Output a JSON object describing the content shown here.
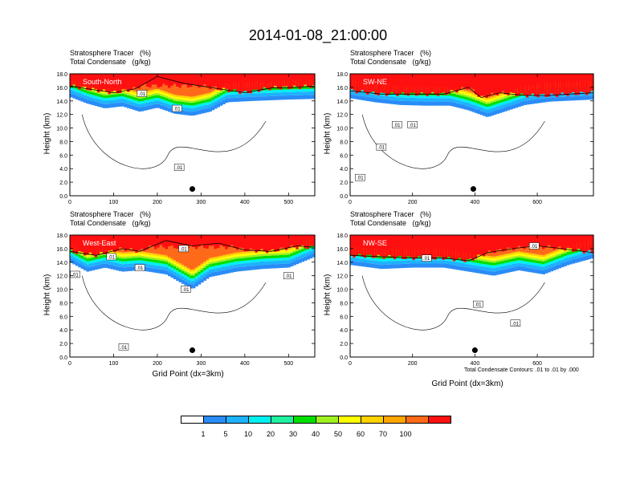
{
  "title": "2014-01-08_21:00:00",
  "colorbar": {
    "colors": [
      "#ffffff",
      "#2a8cf7",
      "#1fb2ff",
      "#00f0f0",
      "#20f0a0",
      "#00e000",
      "#a0f020",
      "#ffff00",
      "#ffd200",
      "#ffa500",
      "#ff6a1a",
      "#ff1010"
    ],
    "labels": [
      "1",
      "5",
      "10",
      "20",
      "30",
      "40",
      "50",
      "60",
      "70",
      "100"
    ]
  },
  "contour_note": "Total Condensate Contours: .01 to .01 by .000",
  "chart_data": [
    {
      "type": "heatmap",
      "title": "South-North",
      "header_line1": "Stratosphere Tracer   (%)",
      "header_line2": "Total Condensate   (g/kg)",
      "ylabel": "Height (km)",
      "xlabel": "",
      "xlim": [
        0,
        560
      ],
      "ylim": [
        0,
        18
      ],
      "xticks": [
        "0",
        "100",
        "200",
        "300",
        "400",
        "500"
      ],
      "xtick_values": [
        0,
        100,
        200,
        300,
        400,
        500
      ],
      "yticks": [
        "0.0",
        "2.0",
        "4.0",
        "6.0",
        "8.0",
        "10.0",
        "12.0",
        "14.0",
        "16.0",
        "18.0"
      ],
      "tropopause_km": [
        [
          0,
          16.2
        ],
        [
          40,
          15.8
        ],
        [
          100,
          15.2
        ],
        [
          150,
          15.8
        ],
        [
          200,
          17.6
        ],
        [
          260,
          16.6
        ],
        [
          320,
          16.0
        ],
        [
          400,
          15.2
        ],
        [
          460,
          15.9
        ],
        [
          520,
          16.0
        ],
        [
          560,
          16.2
        ]
      ],
      "tracer_base_km": [
        [
          0,
          14.6
        ],
        [
          40,
          13.6
        ],
        [
          80,
          12.9
        ],
        [
          120,
          13.2
        ],
        [
          160,
          12.4
        ],
        [
          200,
          13.0
        ],
        [
          240,
          12.1
        ],
        [
          280,
          11.8
        ],
        [
          320,
          12.4
        ],
        [
          360,
          13.8
        ],
        [
          420,
          14.0
        ],
        [
          500,
          14.2
        ],
        [
          560,
          14.3
        ]
      ],
      "contour_labels": [
        {
          "x": 165,
          "y": 15.1,
          "t": ".01"
        },
        {
          "x": 245,
          "y": 12.9,
          "t": ".01"
        },
        {
          "x": 250,
          "y": 4.2,
          "t": ".01"
        }
      ],
      "dot": [
        280,
        1.0
      ]
    },
    {
      "type": "heatmap",
      "title": "SW-NE",
      "header_line1": "Stratosphere Tracer   (%)",
      "header_line2": "Total Condensate   (g/kg)",
      "ylabel": "Height (km)",
      "xlabel": "",
      "xlim": [
        0,
        780
      ],
      "ylim": [
        0,
        18
      ],
      "xticks": [
        "0",
        "200",
        "400",
        "600"
      ],
      "xtick_values": [
        0,
        200,
        400,
        600
      ],
      "yticks": [
        "0.0",
        "2.0",
        "4.0",
        "6.0",
        "8.0",
        "10.0",
        "12.0",
        "14.0",
        "16.0",
        "18.0"
      ],
      "tropopause_km": [
        [
          0,
          15.5
        ],
        [
          100,
          15.0
        ],
        [
          200,
          15.0
        ],
        [
          300,
          15.0
        ],
        [
          380,
          16.0
        ],
        [
          420,
          14.5
        ],
        [
          480,
          15.2
        ],
        [
          560,
          14.8
        ],
        [
          640,
          14.8
        ],
        [
          700,
          15.0
        ],
        [
          780,
          15.2
        ]
      ],
      "tracer_base_km": [
        [
          0,
          14.4
        ],
        [
          80,
          13.8
        ],
        [
          160,
          13.4
        ],
        [
          240,
          13.3
        ],
        [
          320,
          13.3
        ],
        [
          380,
          12.6
        ],
        [
          440,
          11.6
        ],
        [
          500,
          12.5
        ],
        [
          560,
          13.4
        ],
        [
          640,
          13.9
        ],
        [
          780,
          14.2
        ]
      ],
      "contour_labels": [
        {
          "x": 32,
          "y": 2.7,
          "t": ".01"
        },
        {
          "x": 100,
          "y": 7.2,
          "t": ".01"
        },
        {
          "x": 150,
          "y": 10.5,
          "t": ".01"
        },
        {
          "x": 200,
          "y": 10.5,
          "t": ".01"
        }
      ],
      "dot": [
        395,
        1.0
      ]
    },
    {
      "type": "heatmap",
      "title": "West-East",
      "header_line1": "Stratosphere Tracer   (%)",
      "header_line2": "Total Condensate   (g/kg)",
      "ylabel": "Height (km)",
      "xlabel": "Grid Point (dx=3km)",
      "xlim": [
        0,
        560
      ],
      "ylim": [
        0,
        18
      ],
      "xticks": [
        "0",
        "100",
        "200",
        "300",
        "400",
        "500"
      ],
      "xtick_values": [
        0,
        100,
        200,
        300,
        400,
        500
      ],
      "yticks": [
        "0.0",
        "2.0",
        "4.0",
        "6.0",
        "8.0",
        "10.0",
        "12.0",
        "14.0",
        "16.0",
        "18.0"
      ],
      "tropopause_km": [
        [
          0,
          15.6
        ],
        [
          60,
          15.0
        ],
        [
          120,
          16.0
        ],
        [
          160,
          15.6
        ],
        [
          220,
          17.2
        ],
        [
          280,
          16.4
        ],
        [
          340,
          16.8
        ],
        [
          400,
          15.8
        ],
        [
          460,
          15.6
        ],
        [
          520,
          16.4
        ],
        [
          560,
          16.2
        ]
      ],
      "tracer_base_km": [
        [
          0,
          14.0
        ],
        [
          40,
          12.6
        ],
        [
          80,
          13.2
        ],
        [
          120,
          12.6
        ],
        [
          160,
          12.8
        ],
        [
          220,
          12.2
        ],
        [
          280,
          10.0
        ],
        [
          320,
          11.8
        ],
        [
          380,
          12.6
        ],
        [
          440,
          13.0
        ],
        [
          500,
          13.2
        ],
        [
          560,
          14.8
        ]
      ],
      "contour_labels": [
        {
          "x": 12,
          "y": 12.2,
          "t": ".01"
        },
        {
          "x": 95,
          "y": 14.8,
          "t": ".01"
        },
        {
          "x": 160,
          "y": 13.2,
          "t": ".01"
        },
        {
          "x": 265,
          "y": 10.0,
          "t": ".01"
        },
        {
          "x": 260,
          "y": 16.0,
          "t": ".01"
        },
        {
          "x": 500,
          "y": 12.0,
          "t": ".01"
        },
        {
          "x": 123,
          "y": 1.5,
          "t": ".01"
        }
      ],
      "dot": [
        280,
        1.0
      ]
    },
    {
      "type": "heatmap",
      "title": "NW-SE",
      "header_line1": "Stratosphere Tracer   (%)",
      "header_line2": "Total Condensate   (g/kg)",
      "ylabel": "",
      "xlabel": "Grid Point (dx=3km)",
      "xlim": [
        0,
        780
      ],
      "ylim": [
        0,
        18
      ],
      "xticks": [
        "0",
        "200",
        "400",
        "600"
      ],
      "xtick_values": [
        0,
        200,
        400,
        600
      ],
      "yticks": [
        "0.0",
        "2.0",
        "4.0",
        "6.0",
        "8.0",
        "10.0",
        "12.0",
        "14.0",
        "16.0",
        "18.0"
      ],
      "tropopause_km": [
        [
          0,
          15.0
        ],
        [
          100,
          14.8
        ],
        [
          200,
          14.6
        ],
        [
          300,
          14.6
        ],
        [
          380,
          14.2
        ],
        [
          440,
          15.4
        ],
        [
          520,
          16.0
        ],
        [
          600,
          16.4
        ],
        [
          680,
          16.0
        ],
        [
          780,
          15.4
        ]
      ],
      "tracer_base_km": [
        [
          0,
          13.6
        ],
        [
          100,
          13.0
        ],
        [
          200,
          13.2
        ],
        [
          300,
          13.2
        ],
        [
          380,
          12.6
        ],
        [
          460,
          12.0
        ],
        [
          540,
          12.8
        ],
        [
          620,
          12.2
        ],
        [
          700,
          13.6
        ],
        [
          780,
          14.6
        ]
      ],
      "contour_labels": [
        {
          "x": 245,
          "y": 14.6,
          "t": ".01"
        },
        {
          "x": 410,
          "y": 7.8,
          "t": ".01"
        },
        {
          "x": 530,
          "y": 5.0,
          "t": ".01"
        },
        {
          "x": 590,
          "y": 16.4,
          "t": ".01"
        }
      ],
      "dot": [
        400,
        1.0
      ]
    }
  ]
}
